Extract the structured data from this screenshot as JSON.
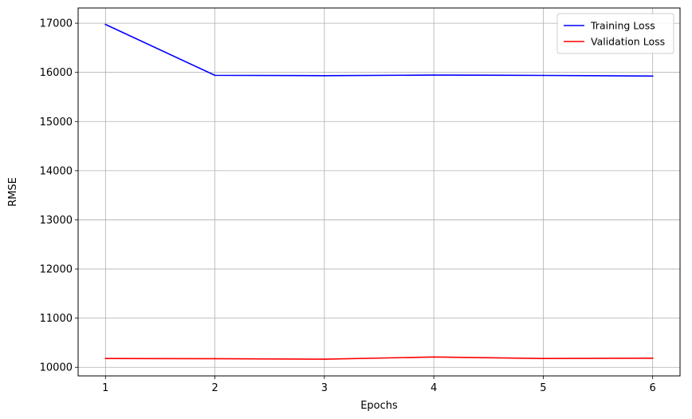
{
  "chart_data": {
    "type": "line",
    "title": "",
    "xlabel": "Epochs",
    "ylabel": "RMSE",
    "x": [
      1,
      2,
      3,
      4,
      5,
      6
    ],
    "xticks": [
      "1",
      "2",
      "3",
      "4",
      "5",
      "6"
    ],
    "yticks": [
      10000,
      11000,
      12000,
      13000,
      14000,
      15000,
      16000,
      17000
    ],
    "ytick_labels": [
      "10000",
      "11000",
      "12000",
      "13000",
      "14000",
      "15000",
      "16000",
      "17000"
    ],
    "xlim": [
      0.75,
      6.25
    ],
    "ylim": [
      9825,
      17310
    ],
    "grid": true,
    "legend_position": "top-right",
    "series": [
      {
        "name": "Training Loss",
        "color": "#0000ff",
        "values": [
          16975,
          15940,
          15933,
          15945,
          15938,
          15925
        ]
      },
      {
        "name": "Validation Loss",
        "color": "#ff0000",
        "values": [
          10180,
          10175,
          10165,
          10210,
          10180,
          10185
        ]
      }
    ]
  }
}
